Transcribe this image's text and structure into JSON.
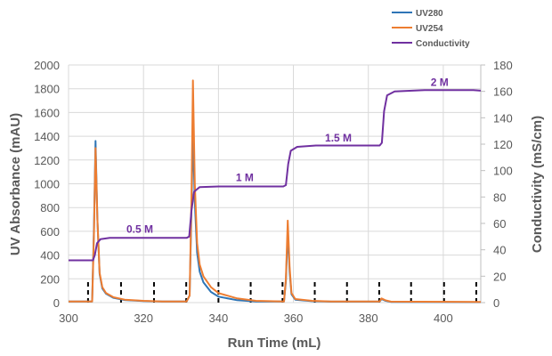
{
  "chart_data": {
    "type": "line",
    "xlabel": "Run Time (mL)",
    "ylabel": "UV Absorbance (mAU)",
    "y2label": "Conductivity (mS/cm)",
    "xlim": [
      300,
      410
    ],
    "ylim": [
      0,
      2000
    ],
    "y2lim": [
      0,
      180
    ],
    "xticks": [
      300,
      320,
      340,
      360,
      380,
      400
    ],
    "yticks": [
      0,
      200,
      400,
      600,
      800,
      1000,
      1200,
      1400,
      1600,
      1800,
      2000
    ],
    "y2ticks": [
      0,
      20,
      40,
      60,
      80,
      100,
      120,
      140,
      160,
      180
    ],
    "grid": true,
    "legend_position": "top-right",
    "series": [
      {
        "name": "UV280",
        "axis": "left",
        "color": "#2e75b6",
        "points": [
          [
            300,
            10
          ],
          [
            306.3,
            10
          ],
          [
            306.8,
            650
          ],
          [
            307.2,
            1360
          ],
          [
            307.7,
            700
          ],
          [
            308.3,
            240
          ],
          [
            309,
            120
          ],
          [
            310,
            75
          ],
          [
            312,
            40
          ],
          [
            315,
            22
          ],
          [
            320,
            13
          ],
          [
            325,
            10
          ],
          [
            331.5,
            10
          ],
          [
            332.3,
            60
          ],
          [
            332.8,
            800
          ],
          [
            333.2,
            1450
          ],
          [
            333.7,
            850
          ],
          [
            334.3,
            420
          ],
          [
            335,
            260
          ],
          [
            336,
            170
          ],
          [
            338,
            90
          ],
          [
            340,
            50
          ],
          [
            345,
            20
          ],
          [
            350,
            10
          ],
          [
            357.5,
            10
          ],
          [
            358,
            180
          ],
          [
            358.5,
            600
          ],
          [
            359,
            260
          ],
          [
            359.5,
            70
          ],
          [
            360.5,
            25
          ],
          [
            365,
            12
          ],
          [
            370,
            8
          ],
          [
            383,
            8
          ],
          [
            383.5,
            30
          ],
          [
            384.5,
            16
          ],
          [
            386,
            6
          ],
          [
            410,
            4
          ]
        ]
      },
      {
        "name": "UV254",
        "axis": "left",
        "color": "#ed7d31",
        "points": [
          [
            300,
            10
          ],
          [
            306.3,
            10
          ],
          [
            306.8,
            600
          ],
          [
            307.2,
            1300
          ],
          [
            307.7,
            700
          ],
          [
            308.3,
            250
          ],
          [
            309,
            130
          ],
          [
            310,
            80
          ],
          [
            312,
            45
          ],
          [
            315,
            25
          ],
          [
            320,
            15
          ],
          [
            325,
            10
          ],
          [
            331.5,
            10
          ],
          [
            332.3,
            60
          ],
          [
            332.8,
            900
          ],
          [
            333.2,
            1870
          ],
          [
            333.7,
            1000
          ],
          [
            334.3,
            500
          ],
          [
            335,
            320
          ],
          [
            336,
            220
          ],
          [
            338,
            130
          ],
          [
            340,
            80
          ],
          [
            345,
            35
          ],
          [
            350,
            15
          ],
          [
            357.5,
            10
          ],
          [
            358,
            200
          ],
          [
            358.5,
            690
          ],
          [
            359,
            300
          ],
          [
            359.5,
            80
          ],
          [
            360.5,
            30
          ],
          [
            365,
            15
          ],
          [
            370,
            10
          ],
          [
            383,
            10
          ],
          [
            383.5,
            35
          ],
          [
            384.5,
            20
          ],
          [
            386,
            8
          ],
          [
            410,
            5
          ]
        ]
      },
      {
        "name": "Conductivity",
        "axis": "right",
        "color": "#7030a0",
        "points": [
          [
            300,
            32
          ],
          [
            306.5,
            32
          ],
          [
            307,
            36
          ],
          [
            307.6,
            45
          ],
          [
            308.5,
            48
          ],
          [
            311,
            49
          ],
          [
            331.5,
            49
          ],
          [
            332.2,
            50
          ],
          [
            332.8,
            70
          ],
          [
            333.5,
            84
          ],
          [
            335,
            87.5
          ],
          [
            340,
            88
          ],
          [
            357.3,
            88
          ],
          [
            358,
            89
          ],
          [
            358.6,
            105
          ],
          [
            359.3,
            115
          ],
          [
            361,
            118
          ],
          [
            366,
            119
          ],
          [
            383,
            119
          ],
          [
            383.6,
            121
          ],
          [
            384.2,
            145
          ],
          [
            385,
            157
          ],
          [
            387,
            160
          ],
          [
            395,
            161
          ],
          [
            408,
            161
          ],
          [
            410,
            160.5
          ]
        ]
      }
    ],
    "fraction_markers": [
      305.2,
      314,
      322.8,
      331.4,
      340,
      348.6,
      357.1,
      365.7,
      374.3,
      382.9,
      391.4,
      400.2,
      408.8
    ],
    "fraction_marker_height": 200,
    "annotations": [
      {
        "text": "0.5 M",
        "x": 319,
        "y": 53
      },
      {
        "text": "1 M",
        "x": 347,
        "y": 92
      },
      {
        "text": "1.5 M",
        "x": 372,
        "y": 122
      },
      {
        "text": "2 M",
        "x": 399,
        "y": 164
      }
    ]
  }
}
